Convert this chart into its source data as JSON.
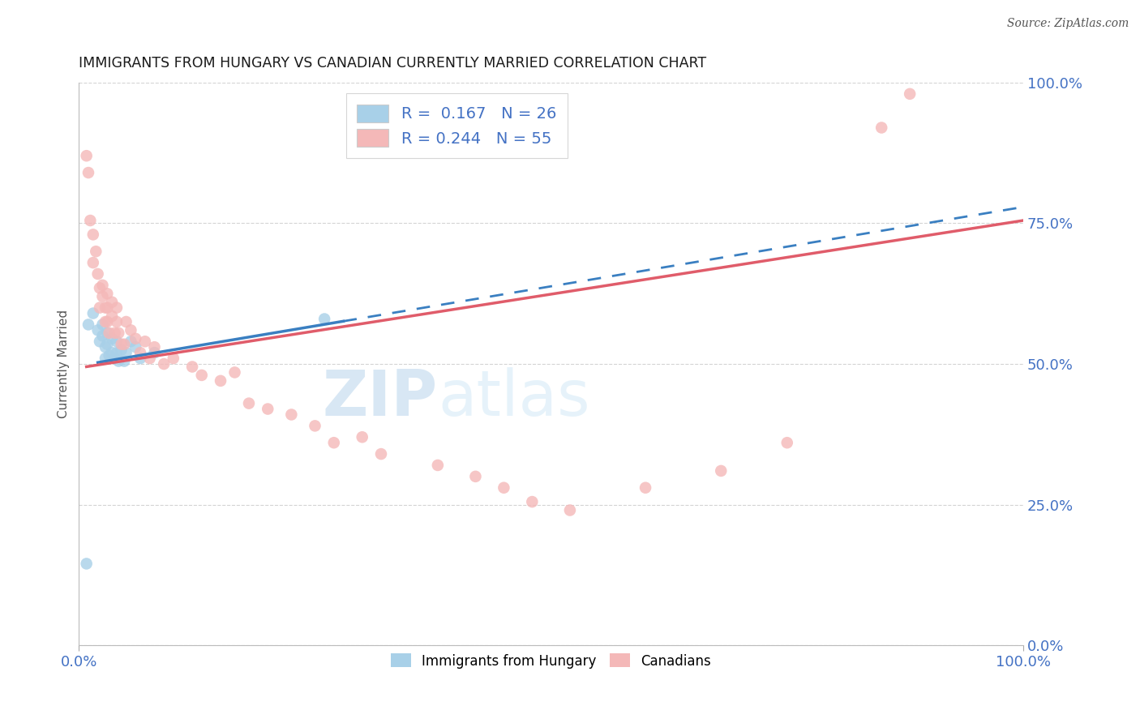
{
  "title": "IMMIGRANTS FROM HUNGARY VS CANADIAN CURRENTLY MARRIED CORRELATION CHART",
  "source": "Source: ZipAtlas.com",
  "ylabel": "Currently Married",
  "ytick_labels": [
    "0.0%",
    "25.0%",
    "50.0%",
    "75.0%",
    "100.0%"
  ],
  "ytick_values": [
    0.0,
    0.25,
    0.5,
    0.75,
    1.0
  ],
  "xtick_labels": [
    "0.0%",
    "100.0%"
  ],
  "xtick_values": [
    0.0,
    1.0
  ],
  "legend_label1": "Immigrants from Hungary",
  "legend_label2": "Canadians",
  "R1": 0.167,
  "N1": 26,
  "R2": 0.244,
  "N2": 55,
  "blue_color": "#a8d0e8",
  "pink_color": "#f4b8b8",
  "blue_line_color": "#3a7fc1",
  "pink_line_color": "#e05c6a",
  "background_color": "#ffffff",
  "grid_color": "#d0d0d0",
  "title_color": "#1a1a1a",
  "axis_tick_color": "#4472c4",
  "watermark_color": "#d4e8f5",
  "blue_scatter": [
    [
      0.01,
      0.57
    ],
    [
      0.015,
      0.59
    ],
    [
      0.02,
      0.56
    ],
    [
      0.022,
      0.54
    ],
    [
      0.025,
      0.57
    ],
    [
      0.025,
      0.55
    ],
    [
      0.028,
      0.53
    ],
    [
      0.028,
      0.51
    ],
    [
      0.03,
      0.555
    ],
    [
      0.03,
      0.535
    ],
    [
      0.032,
      0.515
    ],
    [
      0.035,
      0.545
    ],
    [
      0.035,
      0.52
    ],
    [
      0.038,
      0.51
    ],
    [
      0.04,
      0.54
    ],
    [
      0.04,
      0.52
    ],
    [
      0.042,
      0.505
    ],
    [
      0.045,
      0.525
    ],
    [
      0.048,
      0.505
    ],
    [
      0.05,
      0.52
    ],
    [
      0.055,
      0.54
    ],
    [
      0.06,
      0.53
    ],
    [
      0.065,
      0.51
    ],
    [
      0.08,
      0.52
    ],
    [
      0.008,
      0.145
    ],
    [
      0.26,
      0.58
    ]
  ],
  "pink_scatter": [
    [
      0.008,
      0.87
    ],
    [
      0.01,
      0.84
    ],
    [
      0.012,
      0.755
    ],
    [
      0.015,
      0.73
    ],
    [
      0.015,
      0.68
    ],
    [
      0.018,
      0.7
    ],
    [
      0.02,
      0.66
    ],
    [
      0.022,
      0.635
    ],
    [
      0.022,
      0.6
    ],
    [
      0.025,
      0.64
    ],
    [
      0.025,
      0.62
    ],
    [
      0.028,
      0.6
    ],
    [
      0.028,
      0.575
    ],
    [
      0.03,
      0.625
    ],
    [
      0.03,
      0.6
    ],
    [
      0.03,
      0.575
    ],
    [
      0.032,
      0.555
    ],
    [
      0.035,
      0.61
    ],
    [
      0.035,
      0.585
    ],
    [
      0.038,
      0.555
    ],
    [
      0.04,
      0.6
    ],
    [
      0.04,
      0.575
    ],
    [
      0.042,
      0.555
    ],
    [
      0.045,
      0.535
    ],
    [
      0.048,
      0.535
    ],
    [
      0.05,
      0.575
    ],
    [
      0.055,
      0.56
    ],
    [
      0.06,
      0.545
    ],
    [
      0.065,
      0.52
    ],
    [
      0.07,
      0.54
    ],
    [
      0.075,
      0.51
    ],
    [
      0.08,
      0.53
    ],
    [
      0.09,
      0.5
    ],
    [
      0.1,
      0.51
    ],
    [
      0.12,
      0.495
    ],
    [
      0.13,
      0.48
    ],
    [
      0.15,
      0.47
    ],
    [
      0.165,
      0.485
    ],
    [
      0.18,
      0.43
    ],
    [
      0.2,
      0.42
    ],
    [
      0.225,
      0.41
    ],
    [
      0.25,
      0.39
    ],
    [
      0.27,
      0.36
    ],
    [
      0.3,
      0.37
    ],
    [
      0.32,
      0.34
    ],
    [
      0.38,
      0.32
    ],
    [
      0.42,
      0.3
    ],
    [
      0.45,
      0.28
    ],
    [
      0.48,
      0.255
    ],
    [
      0.52,
      0.24
    ],
    [
      0.6,
      0.28
    ],
    [
      0.68,
      0.31
    ],
    [
      0.75,
      0.36
    ],
    [
      0.85,
      0.92
    ],
    [
      0.88,
      0.98
    ]
  ],
  "blue_line_intercept": 0.497,
  "blue_line_slope": 0.282,
  "pink_line_intercept": 0.493,
  "pink_line_slope": 0.262
}
